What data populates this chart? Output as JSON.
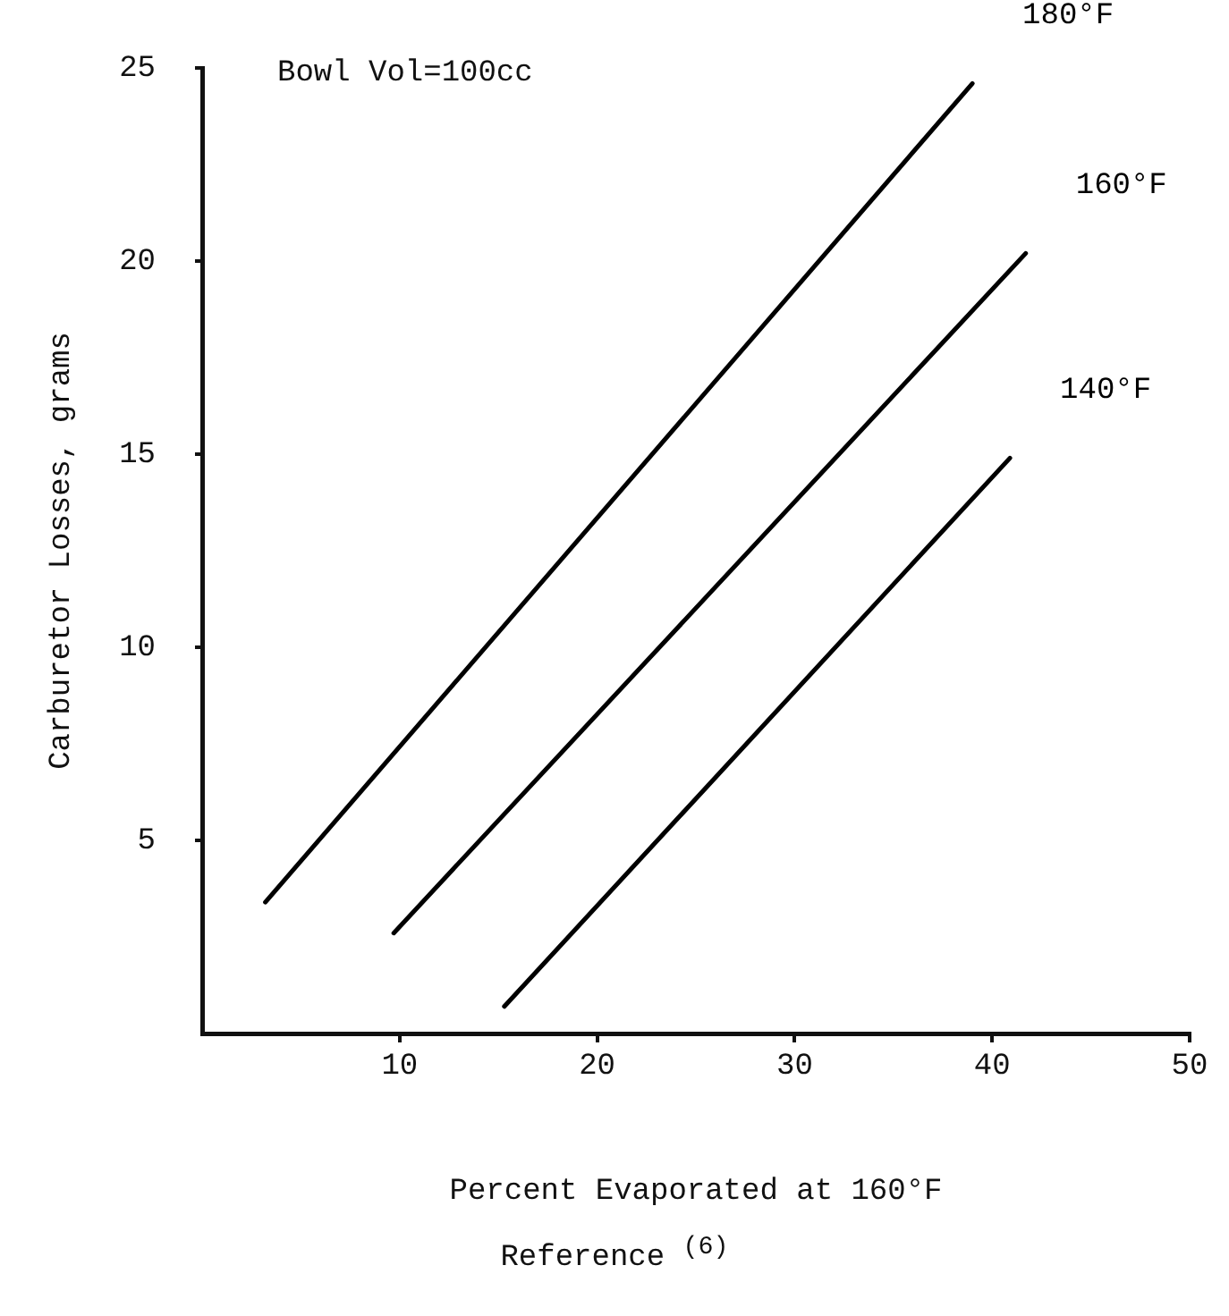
{
  "chart_data": {
    "type": "line",
    "xlabel": "Percent Evaporated at 160°F",
    "ylabel": "Carburetor Losses, grams",
    "annotations": [
      "Bowl Vol=100cc",
      "Reference $^{(6)}$"
    ],
    "series": [
      {
        "name": "180°F",
        "color": "#000000",
        "x": [
          3.2,
          39
        ],
        "values": [
          3.4,
          24.6
        ]
      },
      {
        "name": "160°F",
        "color": "#000000",
        "x": [
          9.7,
          41.7
        ],
        "values": [
          2.6,
          20.2
        ]
      },
      {
        "name": "140°F",
        "color": "#000000",
        "x": [
          15.3,
          40.9
        ],
        "values": [
          0.7,
          14.9
        ]
      }
    ],
    "xlim": [
      0,
      50
    ],
    "xticks": [
      10,
      20,
      30,
      40,
      50
    ],
    "ylim": [
      0,
      25
    ],
    "yticks": [
      5,
      10,
      15,
      20,
      25
    ],
    "grid": false,
    "legend": false,
    "marker": "none",
    "line_style": "solid"
  }
}
